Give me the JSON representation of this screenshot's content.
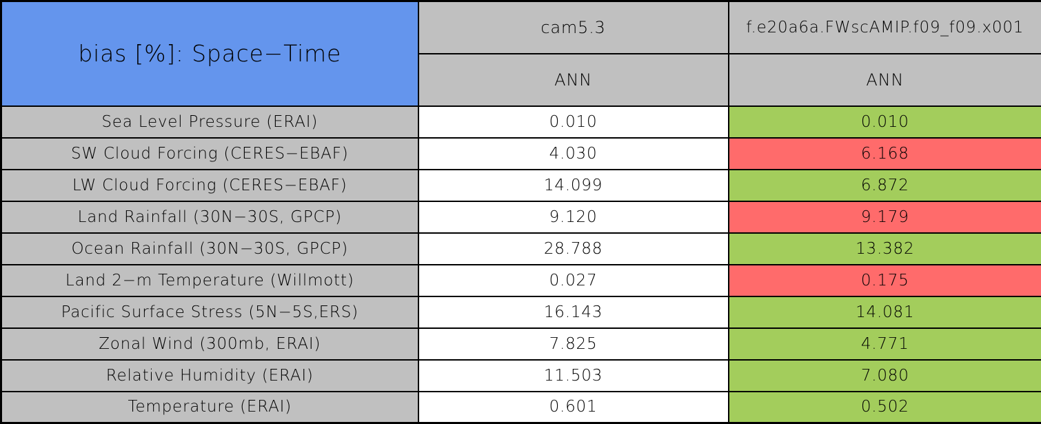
{
  "title": "bias [%]: Space−Time",
  "colors": {
    "title_bg": "#6495ED",
    "header_bg": "#C0C0C0",
    "label_bg": "#C0C0C0",
    "value_default_bg": "#FFFFFF",
    "value_better_bg": "#A3CD5C",
    "value_worse_bg": "#FF6B6B",
    "border": "#000000",
    "text": "#000000"
  },
  "columns": [
    {
      "run_label": "cam5.3",
      "season_label": "ANN"
    },
    {
      "run_label": "f.e20a6a.FWscAMIP.f09_f09.x001",
      "season_label": "ANN"
    }
  ],
  "chart_data": {
    "type": "table",
    "title": "bias [%]: Space−Time",
    "column_headers": [
      "cam5.3 ANN",
      "f.e20a6a.FWscAMIP.f09_f09.x001 ANN"
    ],
    "rows": [
      {
        "label": "Sea Level Pressure (ERAI)",
        "cam53": "0.010",
        "test": "0.010",
        "test_color": "green"
      },
      {
        "label": "SW Cloud Forcing (CERES−EBAF)",
        "cam53": "4.030",
        "test": "6.168",
        "test_color": "red"
      },
      {
        "label": "LW Cloud Forcing (CERES−EBAF)",
        "cam53": "14.099",
        "test": "6.872",
        "test_color": "green"
      },
      {
        "label": "Land Rainfall (30N−30S, GPCP)",
        "cam53": "9.120",
        "test": "9.179",
        "test_color": "red"
      },
      {
        "label": "Ocean Rainfall (30N−30S, GPCP)",
        "cam53": "28.788",
        "test": "13.382",
        "test_color": "green"
      },
      {
        "label": "Land 2−m Temperature (Willmott)",
        "cam53": "0.027",
        "test": "0.175",
        "test_color": "red"
      },
      {
        "label": "Pacific Surface Stress (5N−5S,ERS)",
        "cam53": "16.143",
        "test": "14.081",
        "test_color": "green"
      },
      {
        "label": "Zonal Wind (300mb, ERAI)",
        "cam53": "7.825",
        "test": "4.771",
        "test_color": "green"
      },
      {
        "label": "Relative Humidity (ERAI)",
        "cam53": "11.503",
        "test": "7.080",
        "test_color": "green"
      },
      {
        "label": "Temperature (ERAI)",
        "cam53": "0.601",
        "test": "0.502",
        "test_color": "green"
      }
    ]
  }
}
